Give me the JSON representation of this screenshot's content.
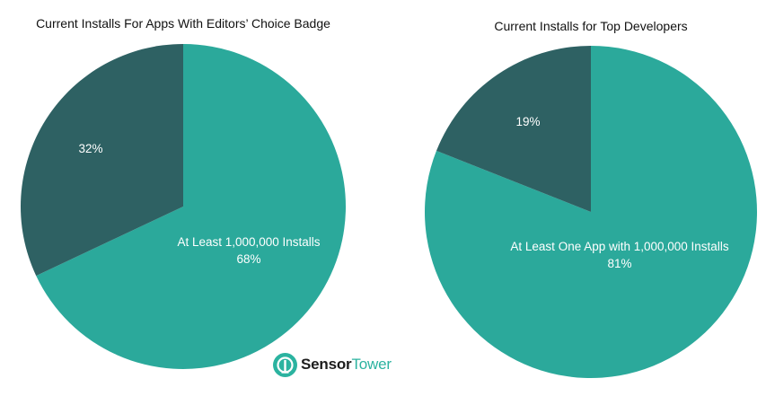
{
  "chart_data": [
    {
      "type": "pie",
      "title": "Current Installs For Apps With Editors’ Choice Badge",
      "slices": [
        {
          "label": "At Least 1,000,000 Installs",
          "value": 68,
          "value_label": "68%",
          "color": "#2ba99b"
        },
        {
          "label": "",
          "value": 32,
          "value_label": "32%",
          "color": "#2e6163"
        }
      ]
    },
    {
      "type": "pie",
      "title": "Current Installs for Top Developers",
      "slices": [
        {
          "label": "At Least One App with 1,000,000 Installs",
          "value": 81,
          "value_label": "81%",
          "color": "#2ba99b"
        },
        {
          "label": "",
          "value": 19,
          "value_label": "19%",
          "color": "#2e6163"
        }
      ]
    }
  ],
  "logo": {
    "icon": "sensor-tower-logo-icon",
    "word_bold": "Sensor",
    "word_light": "Tower",
    "color": "#2bb3a0"
  }
}
